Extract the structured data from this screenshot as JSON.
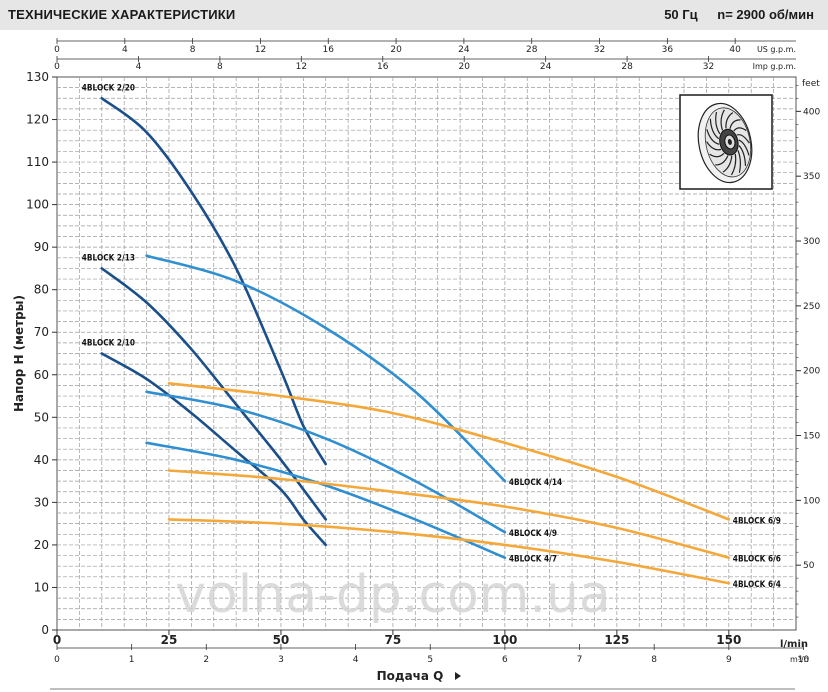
{
  "header": {
    "title": "ТЕХНИЧЕСКИЕ ХАРАКТЕРИСТИКИ",
    "frequency": "50 Гц",
    "speed": "n= 2900  об/мин"
  },
  "watermark": "volna-dp.com.ua",
  "colors": {
    "dark_blue": "#1b4f8a",
    "light_blue": "#2f8fd0",
    "orange": "#f5a83a",
    "grid": "#9a9a9a"
  },
  "icons": {
    "impeller": "impeller-icon"
  },
  "chart_data": {
    "type": "line",
    "ylabel": "Напор H (метры)",
    "xlabel": "Подача Q",
    "xlim": [
      0,
      165
    ],
    "ylim": [
      0,
      130
    ],
    "x_unit": "l/min",
    "y_ticks": [
      0,
      10,
      20,
      30,
      40,
      50,
      60,
      70,
      80,
      90,
      100,
      110,
      120,
      130
    ],
    "x_ticks_lmin": [
      0,
      25,
      50,
      75,
      100,
      125,
      150
    ],
    "secondary_axes": {
      "us_gpm": {
        "label": "US g.p.m.",
        "ticks": [
          0,
          4,
          8,
          12,
          16,
          20,
          24,
          28,
          32,
          36,
          40
        ]
      },
      "imp_gpm": {
        "label": "Imp g.p.m.",
        "ticks": [
          0,
          4,
          8,
          12,
          16,
          20,
          24,
          28,
          32
        ]
      },
      "m3h": {
        "label": "m³/h",
        "ticks": [
          0,
          1,
          2,
          3,
          4,
          5,
          6,
          7,
          8,
          9,
          10
        ]
      },
      "feet": {
        "label": "feet",
        "ticks": [
          50,
          100,
          150,
          200,
          250,
          300,
          350,
          400
        ]
      }
    },
    "series": [
      {
        "name": "4BLOCK 2/20",
        "color": "#1b4f8a",
        "label_anchor": "start",
        "x": [
          10,
          20,
          30,
          40,
          50,
          55,
          60
        ],
        "y": [
          125,
          117,
          103,
          85,
          61,
          48,
          39
        ]
      },
      {
        "name": "4BLOCK 2/13",
        "color": "#1b4f8a",
        "label_anchor": "start",
        "x": [
          10,
          20,
          30,
          40,
          50,
          60
        ],
        "y": [
          85,
          77,
          66,
          53,
          40,
          26
        ]
      },
      {
        "name": "4BLOCK 2/10",
        "color": "#1b4f8a",
        "label_anchor": "start",
        "x": [
          10,
          20,
          30,
          40,
          50,
          55,
          60
        ],
        "y": [
          65,
          59,
          51,
          42,
          33,
          26,
          20
        ]
      },
      {
        "name": "4BLOCK 4/14",
        "color": "#2f8fd0",
        "label_anchor": "end",
        "x": [
          20,
          40,
          60,
          80,
          100
        ],
        "y": [
          88,
          82,
          71,
          56,
          35
        ]
      },
      {
        "name": "4BLOCK 4/9",
        "color": "#2f8fd0",
        "label_anchor": "end",
        "x": [
          20,
          40,
          60,
          80,
          100
        ],
        "y": [
          56,
          52,
          45,
          35,
          23
        ]
      },
      {
        "name": "4BLOCK 4/7",
        "color": "#2f8fd0",
        "label_anchor": "end",
        "x": [
          20,
          40,
          60,
          80,
          100
        ],
        "y": [
          44,
          40,
          34,
          26,
          17
        ]
      },
      {
        "name": "4BLOCK 6/9",
        "color": "#f5a83a",
        "label_anchor": "end",
        "x": [
          25,
          50,
          75,
          100,
          125,
          150
        ],
        "y": [
          58,
          55,
          51,
          44,
          36,
          26
        ]
      },
      {
        "name": "4BLOCK 6/6",
        "color": "#f5a83a",
        "label_anchor": "end",
        "x": [
          25,
          50,
          75,
          100,
          125,
          150
        ],
        "y": [
          37.5,
          35.5,
          32.5,
          29,
          24,
          17
        ]
      },
      {
        "name": "4BLOCK 6/4",
        "color": "#f5a83a",
        "label_anchor": "end",
        "x": [
          25,
          50,
          75,
          100,
          125,
          150
        ],
        "y": [
          26,
          25,
          23,
          20,
          16,
          11
        ]
      }
    ]
  }
}
